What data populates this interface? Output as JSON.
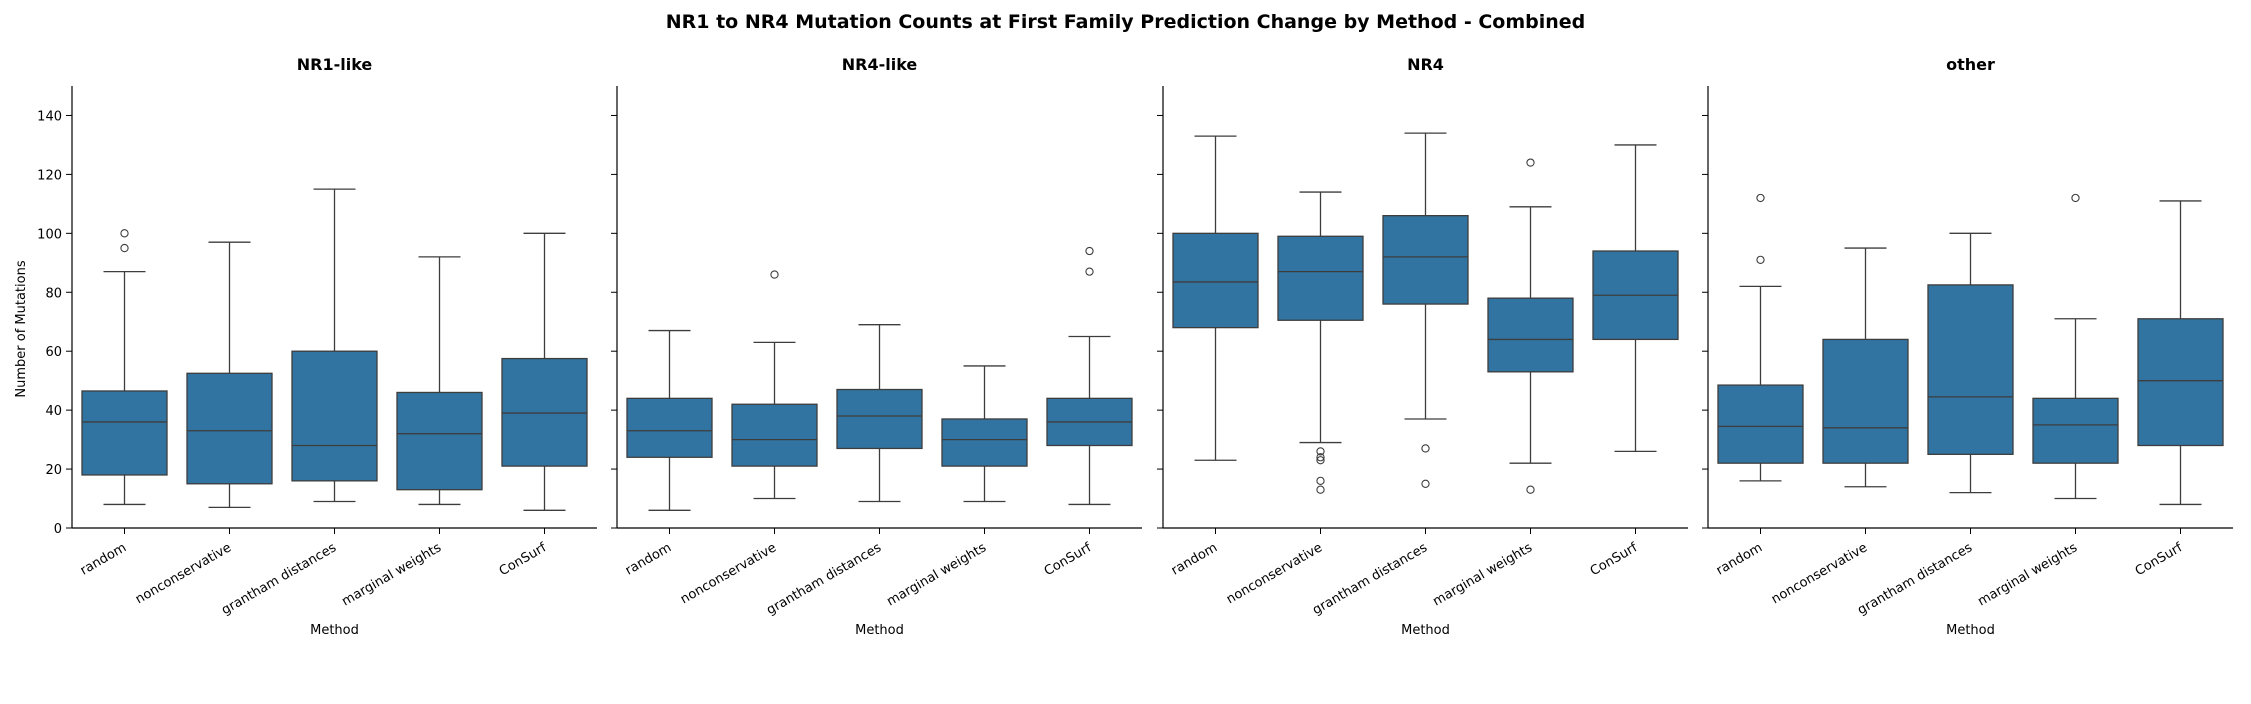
{
  "chart_data": {
    "type": "box",
    "title": "NR1 to NR4 Mutation Counts at First Family Prediction Change by Method - Combined",
    "ylabel": "Number of Mutations",
    "xlabel": "Method",
    "ylim": [
      0,
      150
    ],
    "yticks": [
      0,
      20,
      40,
      60,
      80,
      100,
      120,
      140
    ],
    "categories": [
      "random",
      "nonconservative",
      "grantham distances",
      "marginal weights",
      "ConSurf"
    ],
    "box_color": "#3274a1",
    "panels": [
      {
        "title": "NR1-like",
        "boxes": [
          {
            "whisker_low": 8,
            "q1": 18,
            "median": 36,
            "q3": 46.5,
            "whisker_high": 87,
            "outliers": [
              95,
              100
            ]
          },
          {
            "whisker_low": 7,
            "q1": 15,
            "median": 33,
            "q3": 52.5,
            "whisker_high": 97,
            "outliers": []
          },
          {
            "whisker_low": 9,
            "q1": 16,
            "median": 28,
            "q3": 60,
            "whisker_high": 115,
            "outliers": []
          },
          {
            "whisker_low": 8,
            "q1": 13,
            "median": 32,
            "q3": 46,
            "whisker_high": 92,
            "outliers": []
          },
          {
            "whisker_low": 6,
            "q1": 21,
            "median": 39,
            "q3": 57.5,
            "whisker_high": 100,
            "outliers": []
          }
        ]
      },
      {
        "title": "NR4-like",
        "boxes": [
          {
            "whisker_low": 6,
            "q1": 24,
            "median": 33,
            "q3": 44,
            "whisker_high": 67,
            "outliers": []
          },
          {
            "whisker_low": 10,
            "q1": 21,
            "median": 30,
            "q3": 42,
            "whisker_high": 63,
            "outliers": [
              86
            ]
          },
          {
            "whisker_low": 9,
            "q1": 27,
            "median": 38,
            "q3": 47,
            "whisker_high": 69,
            "outliers": []
          },
          {
            "whisker_low": 9,
            "q1": 21,
            "median": 30,
            "q3": 37,
            "whisker_high": 55,
            "outliers": []
          },
          {
            "whisker_low": 8,
            "q1": 28,
            "median": 36,
            "q3": 44,
            "whisker_high": 65,
            "outliers": [
              87,
              94
            ]
          }
        ]
      },
      {
        "title": "NR4",
        "boxes": [
          {
            "whisker_low": 23,
            "q1": 68,
            "median": 83.5,
            "q3": 100,
            "whisker_high": 133,
            "outliers": []
          },
          {
            "whisker_low": 29,
            "q1": 70.5,
            "median": 87,
            "q3": 99,
            "whisker_high": 114,
            "outliers": [
              26,
              24,
              23,
              16,
              13
            ]
          },
          {
            "whisker_low": 37,
            "q1": 76,
            "median": 92,
            "q3": 106,
            "whisker_high": 134,
            "outliers": [
              27,
              15
            ]
          },
          {
            "whisker_low": 22,
            "q1": 53,
            "median": 64,
            "q3": 78,
            "whisker_high": 109,
            "outliers": [
              124,
              13
            ]
          },
          {
            "whisker_low": 26,
            "q1": 64,
            "median": 79,
            "q3": 94,
            "whisker_high": 130,
            "outliers": []
          }
        ]
      },
      {
        "title": "other",
        "boxes": [
          {
            "whisker_low": 16,
            "q1": 22,
            "median": 34.5,
            "q3": 48.5,
            "whisker_high": 82,
            "outliers": [
              91,
              112
            ]
          },
          {
            "whisker_low": 14,
            "q1": 22,
            "median": 34,
            "q3": 64,
            "whisker_high": 95,
            "outliers": []
          },
          {
            "whisker_low": 12,
            "q1": 25,
            "median": 44.5,
            "q3": 82.5,
            "whisker_high": 100,
            "outliers": []
          },
          {
            "whisker_low": 10,
            "q1": 22,
            "median": 35,
            "q3": 44,
            "whisker_high": 71,
            "outliers": [
              112
            ]
          },
          {
            "whisker_low": 8,
            "q1": 28,
            "median": 50,
            "q3": 71,
            "whisker_high": 111,
            "outliers": []
          }
        ]
      }
    ]
  }
}
